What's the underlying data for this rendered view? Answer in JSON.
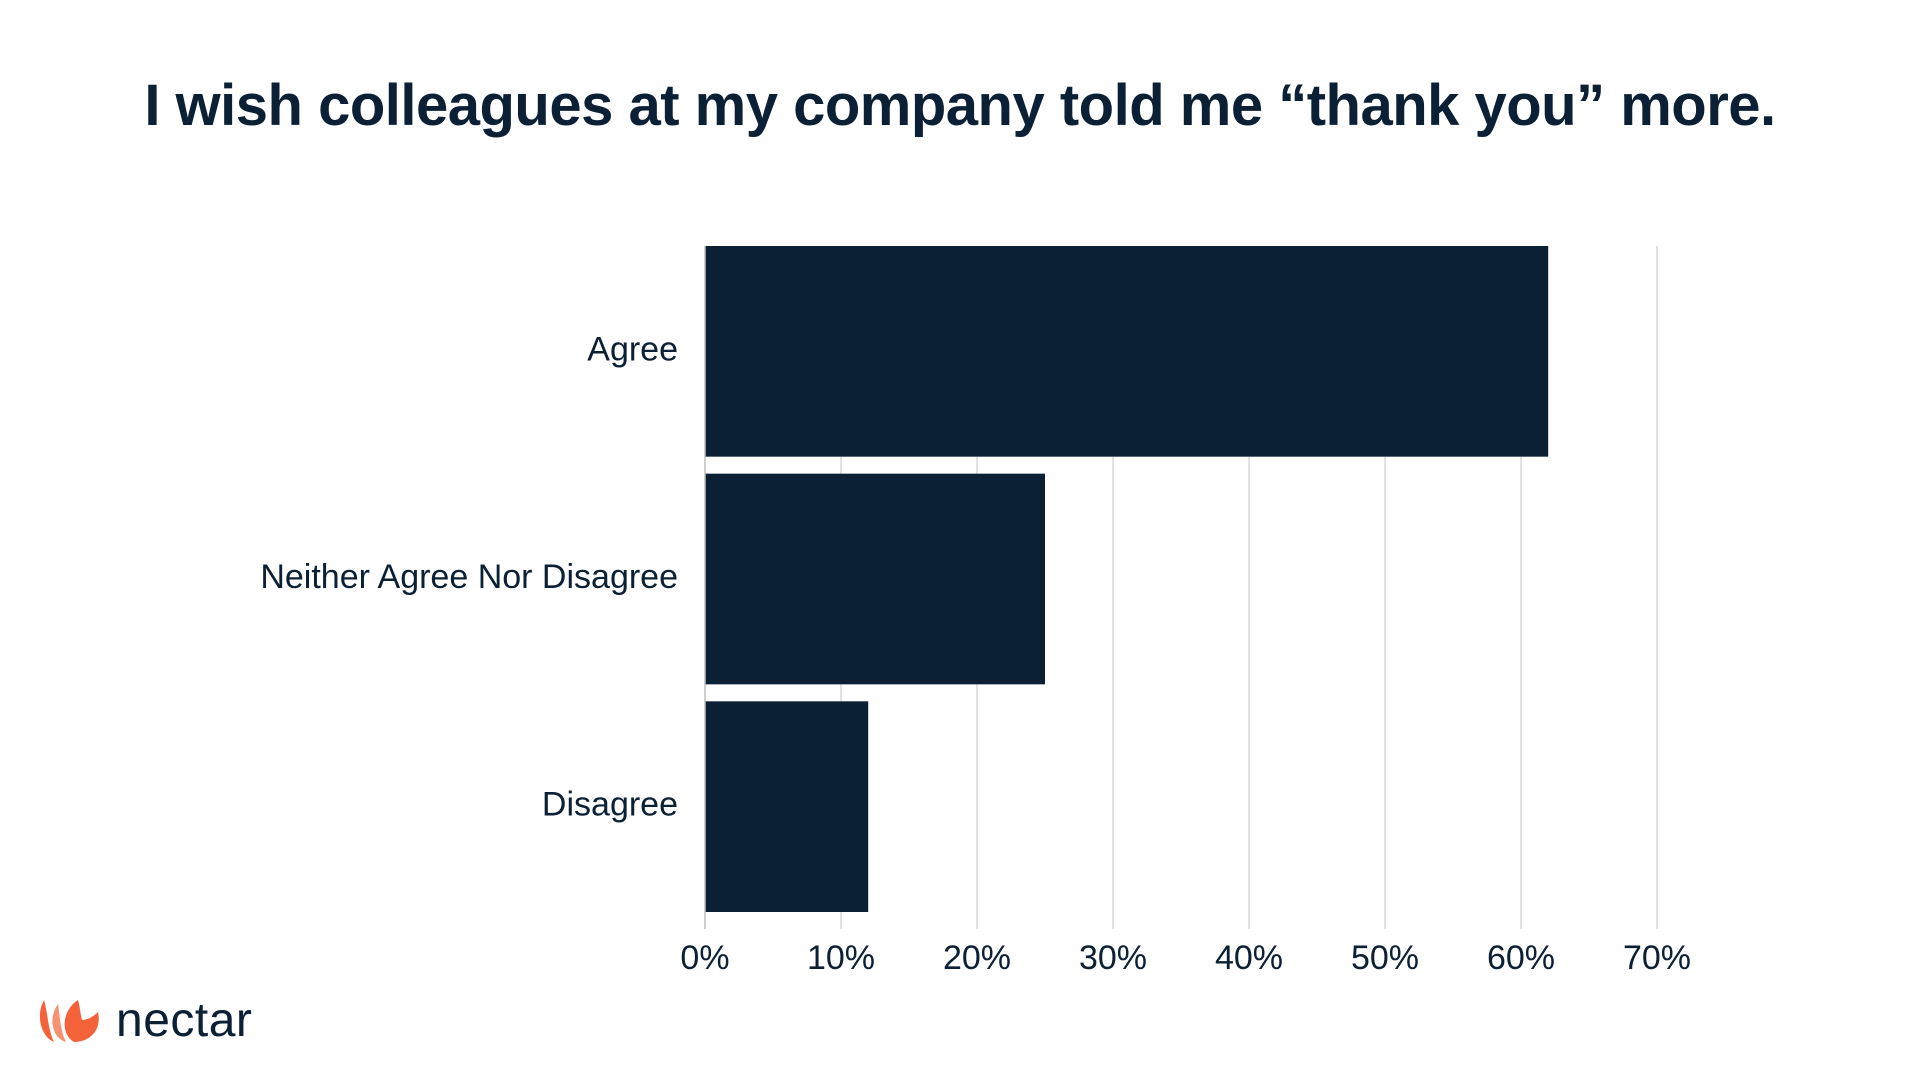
{
  "colors": {
    "bar": "#0b1f35",
    "text": "#0b1f35",
    "grid": "#d9d9d9",
    "logo_orange": "#f4623a",
    "logo_orange_light": "#f79170"
  },
  "logo": {
    "icon": "nectar-flower-icon",
    "text": "nectar"
  },
  "chart_data": {
    "type": "bar",
    "orientation": "horizontal",
    "title": "I wish colleagues at my company told me “thank you” more.",
    "categories": [
      "Agree",
      "Neither Agree Nor Disagree",
      "Disagree"
    ],
    "values": [
      62,
      25,
      12
    ],
    "value_unit": "%",
    "xlim": [
      0,
      70
    ],
    "xticks": [
      0,
      10,
      20,
      30,
      40,
      50,
      60,
      70
    ],
    "xtick_labels": [
      "0%",
      "10%",
      "20%",
      "30%",
      "40%",
      "50%",
      "60%",
      "70%"
    ],
    "xlabel": "",
    "ylabel": "",
    "grid": "vertical",
    "legend": "none"
  }
}
